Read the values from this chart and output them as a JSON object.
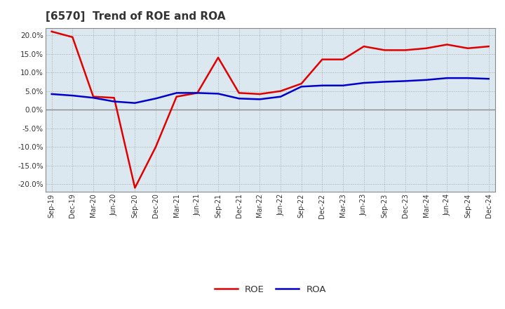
{
  "title": "[6570]  Trend of ROE and ROA",
  "x_labels": [
    "Sep-19",
    "Dec-19",
    "Mar-20",
    "Jun-20",
    "Sep-20",
    "Dec-20",
    "Mar-21",
    "Jun-21",
    "Sep-21",
    "Dec-21",
    "Mar-22",
    "Jun-22",
    "Sep-22",
    "Dec-22",
    "Mar-23",
    "Jun-23",
    "Sep-23",
    "Dec-23",
    "Mar-24",
    "Jun-24",
    "Sep-24",
    "Dec-24"
  ],
  "roe": [
    21.0,
    19.5,
    3.5,
    3.2,
    -21.0,
    -10.0,
    3.5,
    4.5,
    14.0,
    4.5,
    4.2,
    5.0,
    7.0,
    13.5,
    13.5,
    17.0,
    16.0,
    16.0,
    16.5,
    17.5,
    16.5,
    17.0
  ],
  "roa": [
    4.2,
    3.8,
    3.2,
    2.2,
    1.8,
    3.0,
    4.5,
    4.5,
    4.3,
    3.0,
    2.8,
    3.5,
    6.2,
    6.5,
    6.5,
    7.2,
    7.5,
    7.7,
    8.0,
    8.5,
    8.5,
    8.3
  ],
  "roe_color": "#e00000",
  "roa_color": "#0000cc",
  "fig_bg_color": "#ffffff",
  "plot_bg_color": "#dce8f0",
  "grid_color": "#aaaaaa",
  "zero_line_color": "#888888",
  "spine_color": "#888888",
  "ylim": [
    -22,
    22
  ],
  "yticks": [
    -20,
    -15,
    -10,
    -5,
    0,
    5,
    10,
    15,
    20
  ],
  "legend_roe": "ROE",
  "legend_roa": "ROA",
  "line_width": 1.8,
  "title_color": "#333333",
  "tick_label_color": "#333333"
}
